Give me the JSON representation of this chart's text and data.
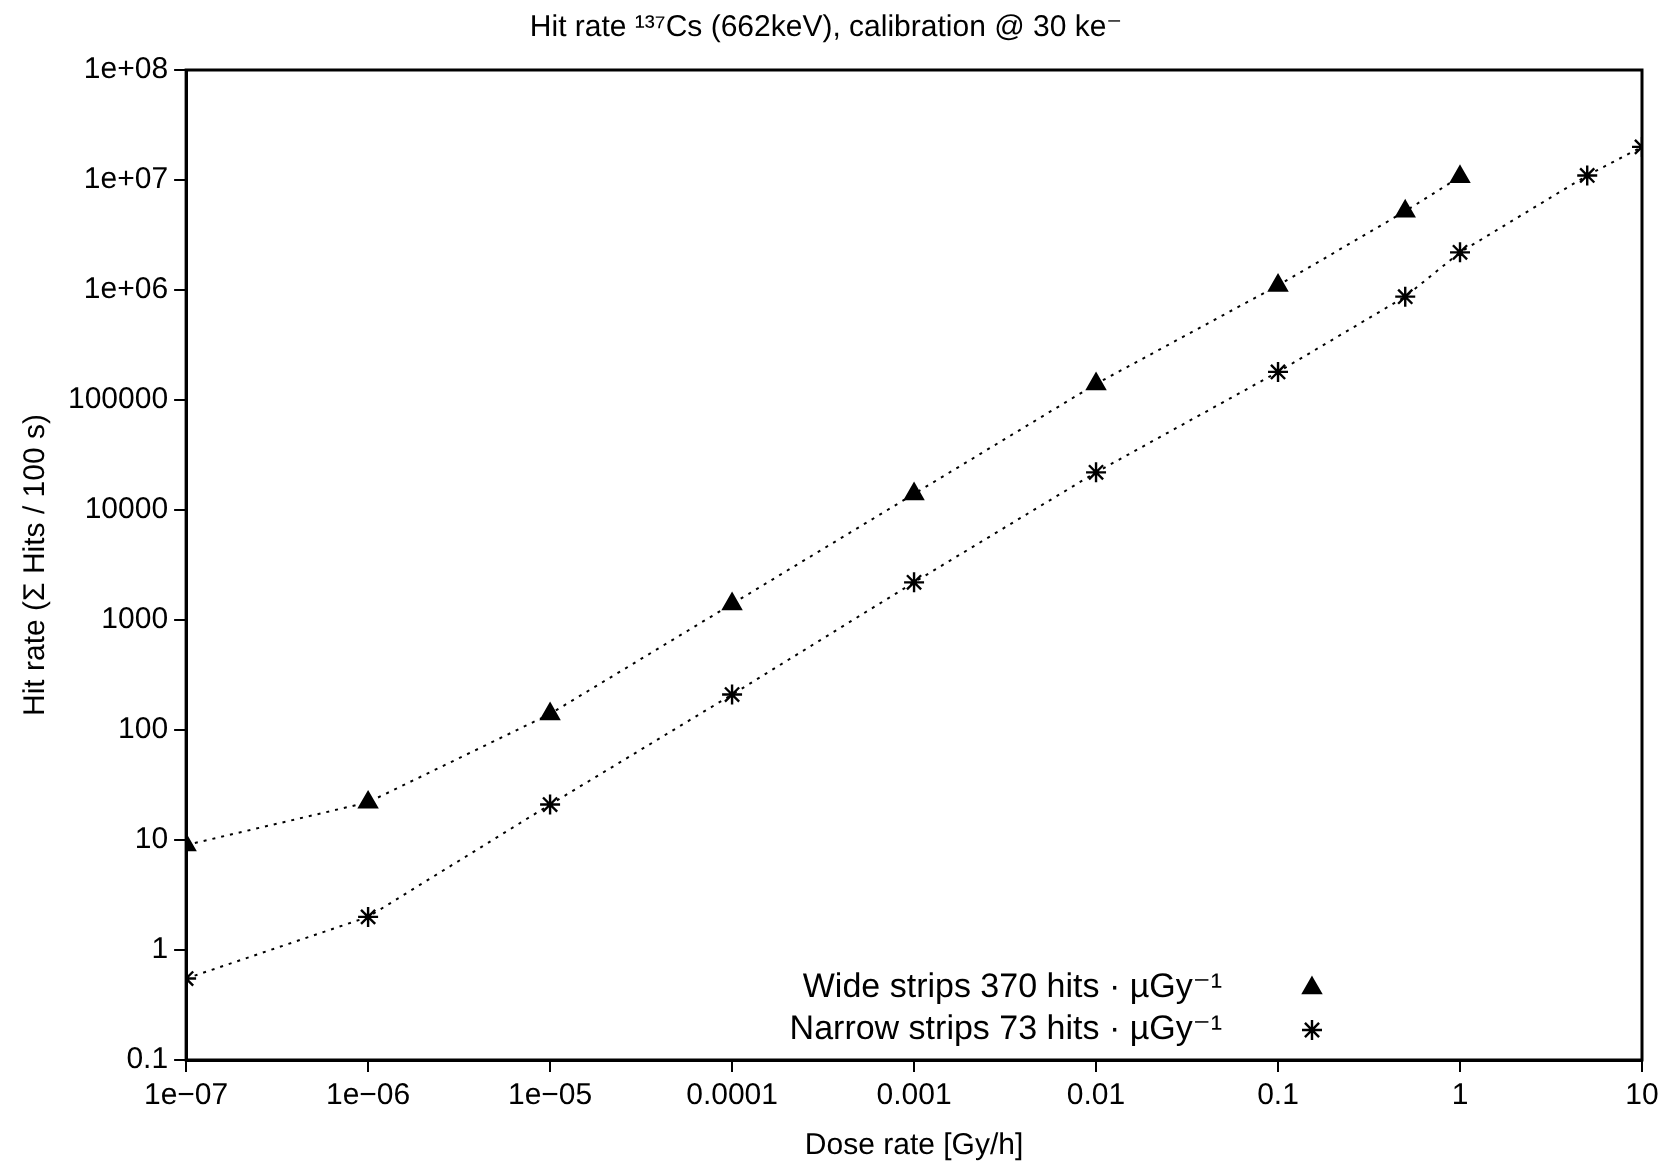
{
  "chart_data": {
    "type": "line",
    "title": "Hit rate ¹³⁷Cs (662keV), calibration @ 30 ke⁻",
    "xlabel": "Dose rate [Gy/h]",
    "ylabel": "Hit rate (Σ Hits / 100 s)",
    "log": "xy",
    "grid": false,
    "legend": "bottom right",
    "line_style": "dotted",
    "xlim": [
      1e-07,
      10
    ],
    "ylim": [
      0.1,
      100000000.0
    ],
    "xticks": [
      {
        "value": 1e-07,
        "label": "1e−07"
      },
      {
        "value": 1e-06,
        "label": "1e−06"
      },
      {
        "value": 1e-05,
        "label": "1e−05"
      },
      0.0001,
      0.001,
      0.01,
      0.1,
      1,
      10
    ],
    "yticks": [
      0.1,
      1,
      10,
      100,
      1000,
      10000,
      100000,
      {
        "value": 1000000.0,
        "label": "1e+06"
      },
      {
        "value": 10000000.0,
        "label": "1e+07"
      },
      {
        "value": 100000000.0,
        "label": "1e+08"
      }
    ],
    "series": [
      {
        "name": "Wide strips 370 hits · µGy⁻¹",
        "color": "#000000",
        "marker": "triangle",
        "x": [
          1e-07,
          1e-06,
          1e-05,
          0.0001,
          0.001,
          0.01,
          0.1,
          0.5,
          1
        ],
        "values": [
          9,
          22,
          140,
          1400,
          14000,
          140000,
          1100000,
          5200000,
          10700000
        ]
      },
      {
        "name": "Narrow strips 73 hits · µGy⁻¹",
        "color": "#000000",
        "marker": "cross",
        "x": [
          1e-07,
          1e-06,
          1e-05,
          0.0001,
          0.001,
          0.01,
          0.1,
          0.5,
          1,
          5,
          10
        ],
        "values": [
          0.55,
          2,
          21,
          210,
          2200,
          22000,
          180000,
          870000,
          2200000,
          11000000,
          20000000
        ]
      }
    ]
  }
}
